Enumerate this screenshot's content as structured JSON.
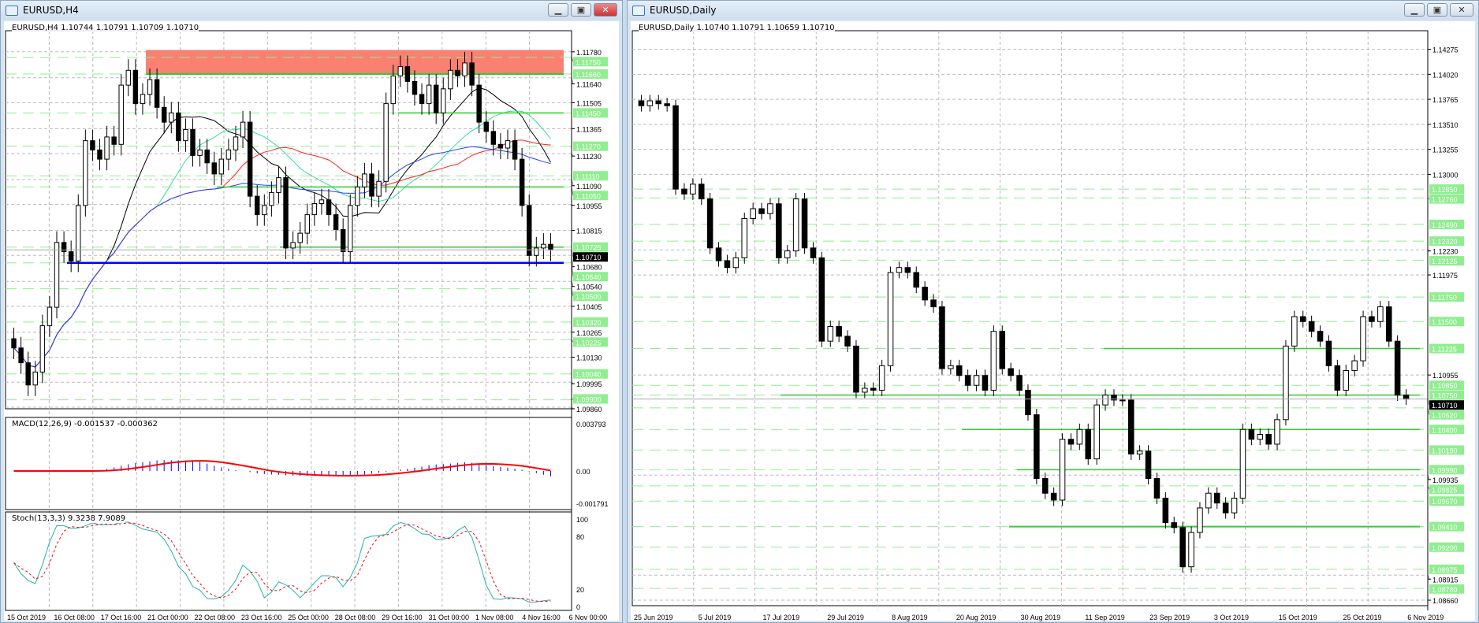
{
  "left": {
    "title": "EURUSD,H4",
    "header": "EURUSD,H4  1.10744 1.10791 1.10709 1.10710",
    "price_range": [
      1.0986,
      1.1186
    ],
    "axis_labels": [
      "1.11780",
      "1.11640",
      "1.11505",
      "1.11365",
      "1.11230",
      "1.11090",
      "1.10955",
      "1.10815",
      "1.10680",
      "1.10540",
      "1.10405",
      "1.10265",
      "1.10130",
      "1.09995",
      "1.09860"
    ],
    "levels": [
      "1.11750",
      "1.11660",
      "1.11450",
      "1.11270",
      "1.11110",
      "1.11050",
      "1.10725",
      "1.10640",
      "1.10500",
      "1.10320",
      "1.10225",
      "1.10040",
      "1.09900"
    ],
    "current_price": "1.10710",
    "support_line": "1.10640",
    "resistance_zone": [
      "1.11660",
      "1.11790"
    ],
    "closes": [
      1.1018,
      1.101,
      1.0998,
      1.1005,
      1.103,
      1.104,
      1.1075,
      1.107,
      1.1065,
      1.1095,
      1.113,
      1.1125,
      1.112,
      1.1132,
      1.1128,
      1.116,
      1.1168,
      1.115,
      1.1155,
      1.1163,
      1.1148,
      1.114,
      1.1145,
      1.113,
      1.1136,
      1.1122,
      1.1125,
      1.1118,
      1.1112,
      1.112,
      1.1125,
      1.1132,
      1.114,
      1.11,
      1.109,
      1.1095,
      1.1102,
      1.111,
      1.1072,
      1.1075,
      1.108,
      1.109,
      1.1096,
      1.1098,
      1.109,
      1.1082,
      1.107,
      1.1095,
      1.1105,
      1.1112,
      1.11,
      1.1108,
      1.115,
      1.1165,
      1.117,
      1.1162,
      1.1155,
      1.115,
      1.116,
      1.1145,
      1.1158,
      1.1168,
      1.1165,
      1.1172,
      1.116,
      1.114,
      1.1135,
      1.1128,
      1.1126,
      1.113,
      1.112,
      1.1095,
      1.1068,
      1.1072,
      1.1074,
      1.1071
    ],
    "dates": [
      "15 Oct 2019",
      "16 Oct 08:00",
      "17 Oct 16:00",
      "21 Oct 00:00",
      "22 Oct 08:00",
      "23 Oct 16:00",
      "25 Oct 00:00",
      "28 Oct 08:00",
      "29 Oct 16:00",
      "31 Oct 00:00",
      "1 Nov 08:00",
      "4 Nov 16:00",
      "6 Nov 00:00"
    ],
    "macd": {
      "label": "MACD(12,26,9) -0.001537 -0.000362",
      "axis": [
        "0.003793",
        "0.00",
        "-0.001791"
      ]
    },
    "stoch": {
      "label": "Stoch(13,3,3) 9.3238 7.9089",
      "axis": [
        "100",
        "80",
        "20",
        "0"
      ]
    }
  },
  "right": {
    "title": "EURUSD,Daily",
    "header": "EURUSD,Daily  1.10740 1.10791 1.10659 1.10710",
    "price_range": [
      1.0862,
      1.144
    ],
    "axis_labels": [
      "1.14275",
      "1.14020",
      "1.13765",
      "1.13510",
      "1.13255",
      "1.13000",
      "1.12230",
      "1.11975",
      "1.10955",
      "1.09935",
      "1.08915",
      "1.08660"
    ],
    "levels": [
      "1.12850",
      "1.12760",
      "1.12490",
      "1.12320",
      "1.12125",
      "1.11750",
      "1.11500",
      "1.11225",
      "1.10850",
      "1.10750",
      "1.10620",
      "1.10400",
      "1.10190",
      "1.09990",
      "1.09825",
      "1.09670",
      "1.09410",
      "1.09200",
      "1.08975",
      "1.08780"
    ],
    "current_price": "1.10710",
    "closes": [
      1.137,
      1.1375,
      1.1372,
      1.137,
      1.1285,
      1.128,
      1.129,
      1.1275,
      1.1225,
      1.1212,
      1.1205,
      1.1215,
      1.1255,
      1.1265,
      1.126,
      1.127,
      1.1215,
      1.1222,
      1.1275,
      1.1225,
      1.1215,
      1.113,
      1.1145,
      1.1135,
      1.1125,
      1.1078,
      1.1082,
      1.108,
      1.1105,
      1.12,
      1.1205,
      1.12,
      1.1185,
      1.1172,
      1.1165,
      1.1102,
      1.1105,
      1.1095,
      1.1085,
      1.1095,
      1.108,
      1.114,
      1.1102,
      1.1095,
      1.108,
      1.1055,
      1.099,
      1.0975,
      1.0968,
      1.103,
      1.1025,
      1.104,
      1.101,
      1.1065,
      1.1075,
      1.107,
      1.107,
      1.1015,
      1.1018,
      1.099,
      1.097,
      1.0945,
      1.094,
      1.09,
      1.0935,
      1.096,
      1.0975,
      1.0965,
      1.0955,
      1.097,
      1.104,
      1.103,
      1.1035,
      1.1025,
      1.105,
      1.1125,
      1.1155,
      1.115,
      1.114,
      1.113,
      1.1105,
      1.108,
      1.11,
      1.111,
      1.1155,
      1.115,
      1.1165,
      1.113,
      1.1075,
      1.1071
    ],
    "dates": [
      "25 Jun 2019",
      "5 Jul 2019",
      "17 Jul 2019",
      "29 Jul 2019",
      "8 Aug 2019",
      "20 Aug 2019",
      "30 Aug 2019",
      "11 Sep 2019",
      "23 Sep 2019",
      "3 Oct 2019",
      "15 Oct 2019",
      "25 Oct 2019",
      "6 Nov 2019"
    ]
  },
  "colors": {
    "up": "#ffffff",
    "down": "#000000",
    "level": "#33cc33",
    "level_label": "#90ee90",
    "zone": "#fa8072",
    "support": "#0000ff",
    "ma_fast": "#000000",
    "ma_mid": "#33e0a0",
    "ma_slow": "#ff2020",
    "ma_long": "#2040ff",
    "macd_hist": "#0000ff",
    "signal": "#ff0000",
    "stoch_main": "#20b2aa",
    "stoch_signal": "#ff0000"
  }
}
